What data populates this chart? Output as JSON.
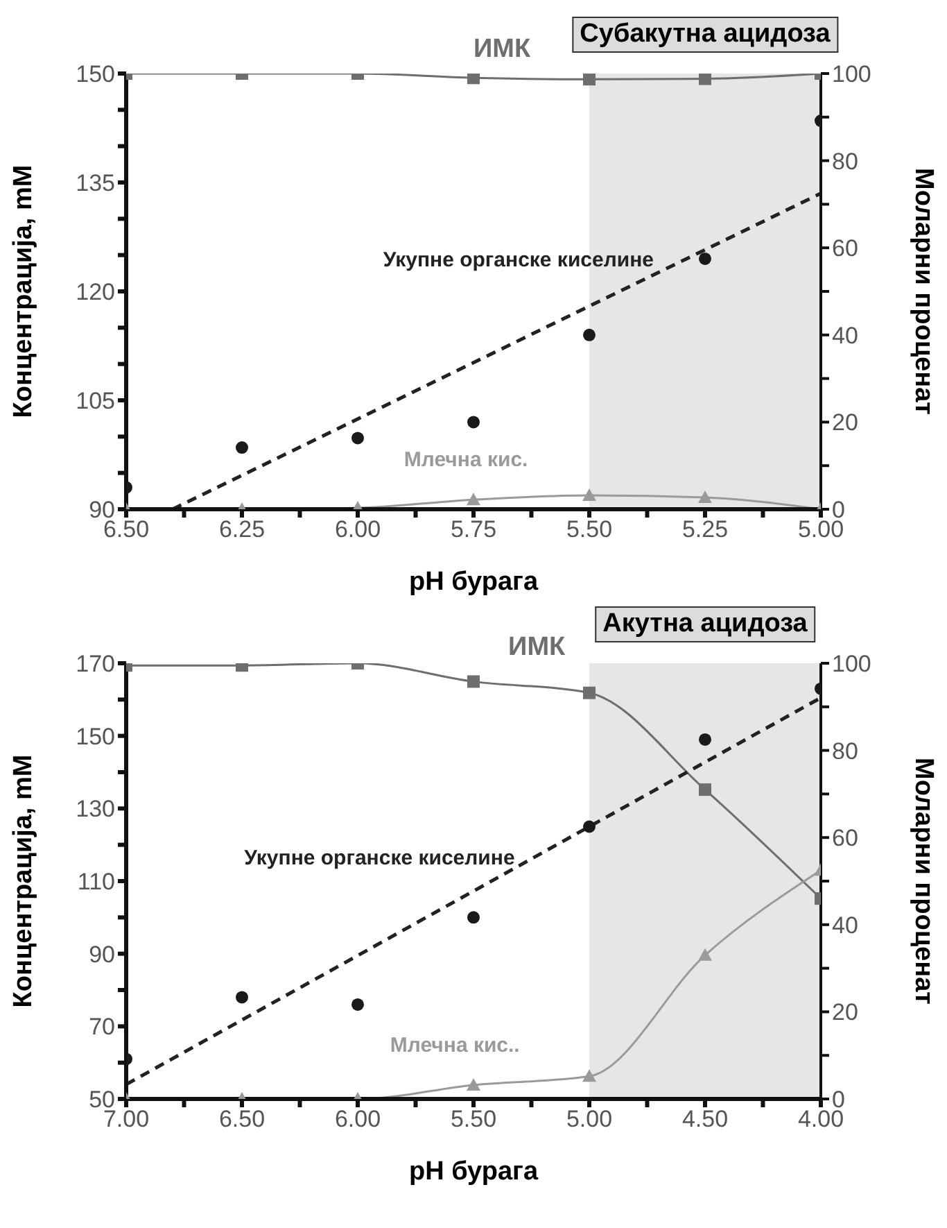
{
  "chart_data": [
    {
      "type": "line",
      "xlabel": "pH бурага",
      "ylabel": "Концентрација, mM",
      "y2label": "Моларни проценат",
      "xlim": [
        6.5,
        5.0
      ],
      "xticks": [
        {
          "value": 6.5,
          "label": "6.50"
        },
        {
          "value": 6.375,
          "label": null
        },
        {
          "value": 6.25,
          "label": "6.25"
        },
        {
          "value": 6.125,
          "label": null
        },
        {
          "value": 6.0,
          "label": "6.00"
        },
        {
          "value": 5.875,
          "label": null
        },
        {
          "value": 5.75,
          "label": "5.75"
        },
        {
          "value": 5.625,
          "label": null
        },
        {
          "value": 5.5,
          "label": "5.50"
        },
        {
          "value": 5.375,
          "label": null
        },
        {
          "value": 5.25,
          "label": "5.25"
        },
        {
          "value": 5.125,
          "label": null
        },
        {
          "value": 5.0,
          "label": "5.00"
        }
      ],
      "ylim": [
        90,
        150
      ],
      "yticks": [
        90,
        {
          "value": 95,
          "label": null
        },
        {
          "value": 100,
          "label": null
        },
        105,
        {
          "value": 110,
          "label": null
        },
        {
          "value": 115,
          "label": null
        },
        120,
        {
          "value": 125,
          "label": null
        },
        {
          "value": 130,
          "label": null
        },
        135,
        {
          "value": 140,
          "label": null
        },
        {
          "value": 145,
          "label": null
        },
        150
      ],
      "y2lim": [
        0,
        100
      ],
      "y2ticks": [
        0,
        {
          "value": 10,
          "label": null
        },
        20,
        {
          "value": 30,
          "label": null
        },
        40,
        {
          "value": 50,
          "label": null
        },
        60,
        {
          "value": 70,
          "label": null
        },
        80,
        {
          "value": 90,
          "label": null
        },
        100
      ],
      "grid": false,
      "bands": [
        {
          "axis": "x",
          "from": 5.5,
          "to": 5.0,
          "label": "Субакутна ацидоза",
          "color": "#e6e6e6"
        }
      ],
      "series": [
        {
          "name": "ИМК",
          "type": "line",
          "axis": "y2",
          "color": "#6e6e6e",
          "marker": "square",
          "line_style": "solid",
          "x": [
            6.5,
            6.25,
            6.0,
            5.75,
            5.5,
            5.25,
            5.0
          ],
          "values": [
            100,
            100,
            100,
            99,
            98.7,
            98.8,
            100
          ]
        },
        {
          "type": "scatter",
          "color": "#1a1a1a",
          "marker": "circle",
          "x": [
            6.5,
            6.25,
            6.0,
            5.75,
            5.5,
            5.25,
            5.0
          ],
          "values": [
            93,
            98.5,
            99.8,
            102,
            114,
            124.5,
            143.5
          ]
        },
        {
          "name": "Укупне органске киселине",
          "type": "line",
          "color": "#222222",
          "marker": "none",
          "line_style": "dashed",
          "x": [
            6.4,
            5.0
          ],
          "values": [
            90,
            133.5
          ]
        },
        {
          "name": "Млечна кис.",
          "type": "line",
          "axis": "y2",
          "color": "#9a9a9a",
          "marker": "triangle",
          "line_style": "solid",
          "x": [
            6.5,
            6.25,
            6.0,
            5.75,
            5.5,
            5.25,
            5.0
          ],
          "values": [
            0,
            0,
            0.3,
            2.2,
            3.2,
            2.7,
            0
          ]
        }
      ]
    },
    {
      "type": "line",
      "xlabel": "pH бурага",
      "ylabel": "Концентрација, mM",
      "y2label": "Моларни проценат",
      "xlim": [
        7.0,
        4.0
      ],
      "xticks": [
        {
          "value": 7.0,
          "label": "7.00"
        },
        {
          "value": 6.75,
          "label": null
        },
        {
          "value": 6.5,
          "label": "6.50"
        },
        {
          "value": 6.25,
          "label": null
        },
        {
          "value": 6.0,
          "label": "6.00"
        },
        {
          "value": 5.75,
          "label": null
        },
        {
          "value": 5.5,
          "label": "5.50"
        },
        {
          "value": 5.25,
          "label": null
        },
        {
          "value": 5.0,
          "label": "5.00"
        },
        {
          "value": 4.75,
          "label": null
        },
        {
          "value": 4.5,
          "label": "4.50"
        },
        {
          "value": 4.25,
          "label": null
        },
        {
          "value": 4.0,
          "label": "4.00"
        }
      ],
      "ylim": [
        50,
        170
      ],
      "yticks": [
        50,
        {
          "value": 60,
          "label": null
        },
        70,
        {
          "value": 80,
          "label": null
        },
        90,
        {
          "value": 100,
          "label": null
        },
        110,
        {
          "value": 120,
          "label": null
        },
        130,
        {
          "value": 140,
          "label": null
        },
        150,
        {
          "value": 160,
          "label": null
        },
        170
      ],
      "y2lim": [
        0,
        100
      ],
      "y2ticks": [
        0,
        {
          "value": 10,
          "label": null
        },
        20,
        {
          "value": 30,
          "label": null
        },
        40,
        {
          "value": 50,
          "label": null
        },
        60,
        {
          "value": 70,
          "label": null
        },
        80,
        {
          "value": 90,
          "label": null
        },
        100
      ],
      "grid": false,
      "bands": [
        {
          "axis": "x",
          "from": 5.0,
          "to": 4.0,
          "label": "Акутна ацидоза",
          "color": "#e6e6e6"
        }
      ],
      "series": [
        {
          "name": "ИМК",
          "type": "line",
          "axis": "y2",
          "color": "#6e6e6e",
          "marker": "square",
          "line_style": "solid",
          "x": [
            7.0,
            6.5,
            6.0,
            5.5,
            5.0,
            4.5,
            4.0
          ],
          "values": [
            99.5,
            99.5,
            100,
            95.8,
            93.2,
            71,
            46
          ]
        },
        {
          "type": "scatter",
          "color": "#1a1a1a",
          "marker": "circle",
          "x": [
            7.0,
            6.5,
            6.0,
            5.5,
            5.0,
            4.5,
            4.0
          ],
          "values": [
            61,
            78,
            76,
            100,
            125,
            149,
            163
          ]
        },
        {
          "name": "Укупне органске киселине",
          "type": "line",
          "color": "#222222",
          "marker": "none",
          "line_style": "dashed",
          "x": [
            7.0,
            4.0
          ],
          "values": [
            54,
            160.5
          ]
        },
        {
          "name": "Млечна кис..",
          "type": "line",
          "axis": "y2",
          "color": "#9a9a9a",
          "marker": "triangle",
          "line_style": "solid",
          "x": [
            7.0,
            6.5,
            6.0,
            5.5,
            5.0,
            4.5,
            4.0
          ],
          "values": [
            0,
            0,
            0,
            3.2,
            5.2,
            33,
            52.5
          ]
        }
      ]
    }
  ]
}
